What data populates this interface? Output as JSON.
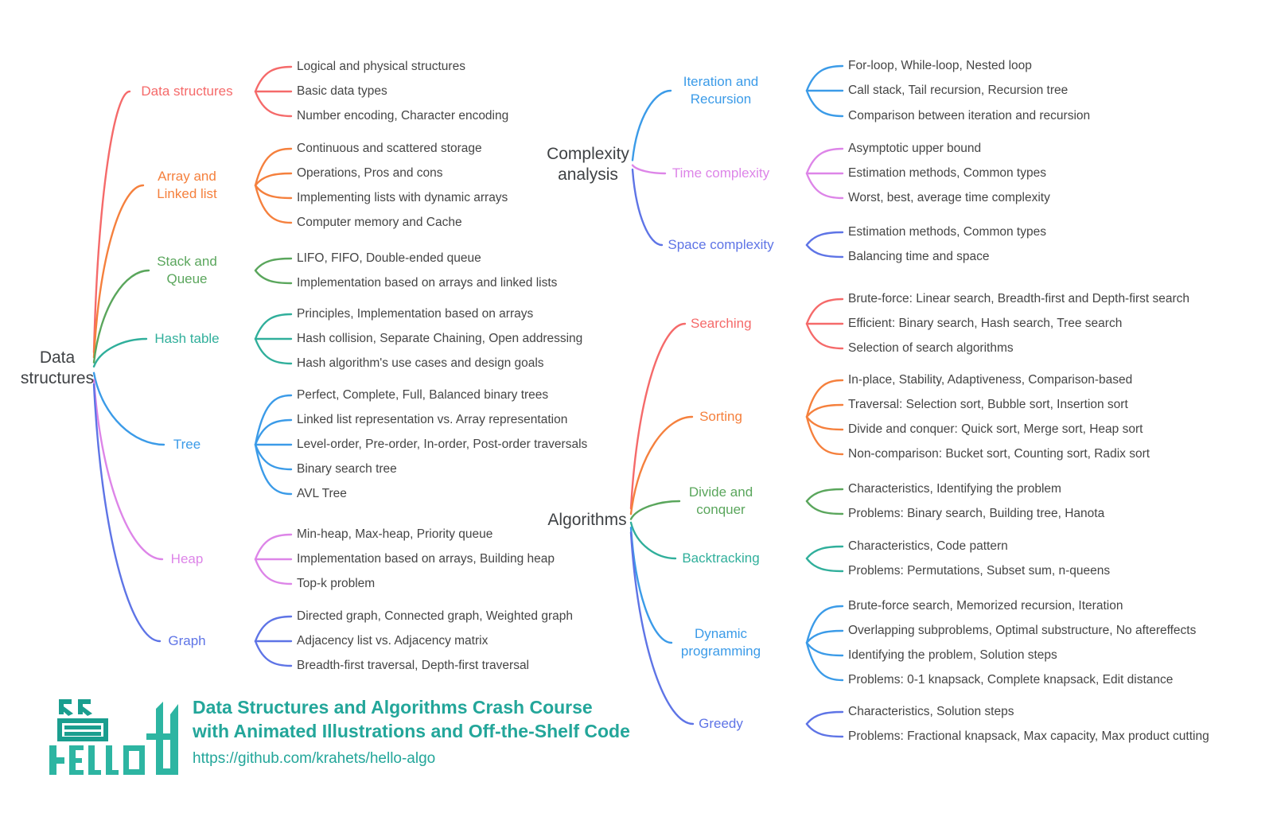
{
  "colors": {
    "background": "#ffffff",
    "leaf_text": "#454545",
    "root_text": "#3f4245",
    "red": "#f56a6a",
    "orange": "#f5803d",
    "green": "#5aa65c",
    "teal": "#30af9b",
    "blue": "#3b9be8",
    "orchid": "#dd85e8",
    "indigo": "#5e74e6"
  },
  "trees": {
    "data_structures": {
      "root": "Data\nstructures",
      "branches": [
        {
          "label": "Data structures",
          "color": "#f56a6a",
          "leaves": [
            "Logical and physical structures",
            "Basic data types",
            "Number encoding, Character encoding"
          ]
        },
        {
          "label": "Array and\nLinked list",
          "color": "#f5803d",
          "leaves": [
            "Continuous and scattered storage",
            "Operations, Pros and cons",
            "Implementing lists with dynamic arrays",
            "Computer memory and Cache"
          ]
        },
        {
          "label": "Stack and\nQueue",
          "color": "#5aa65c",
          "leaves": [
            "LIFO, FIFO, Double-ended queue",
            "Implementation based on arrays and linked lists"
          ]
        },
        {
          "label": "Hash table",
          "color": "#30af9b",
          "leaves": [
            "Principles, Implementation based on arrays",
            "Hash collision, Separate Chaining, Open addressing",
            "Hash algorithm's use cases and design goals"
          ]
        },
        {
          "label": "Tree",
          "color": "#3b9be8",
          "leaves": [
            "Perfect, Complete, Full, Balanced binary trees",
            "Linked list representation vs. Array representation",
            "Level-order, Pre-order, In-order, Post-order traversals",
            "Binary search tree",
            "AVL Tree"
          ]
        },
        {
          "label": "Heap",
          "color": "#dd85e8",
          "leaves": [
            "Min-heap, Max-heap, Priority queue",
            "Implementation based on arrays, Building heap",
            "Top-k problem"
          ]
        },
        {
          "label": "Graph",
          "color": "#5e74e6",
          "leaves": [
            "Directed graph, Connected graph, Weighted graph",
            "Adjacency list vs. Adjacency matrix",
            "Breadth-first traversal, Depth-first traversal"
          ]
        }
      ]
    },
    "complexity": {
      "root": "Complexity\nanalysis",
      "branches": [
        {
          "label": "Iteration and\nRecursion",
          "color": "#3b9be8",
          "leaves": [
            "For-loop, While-loop, Nested loop",
            "Call stack, Tail recursion, Recursion tree",
            "Comparison between iteration and recursion"
          ]
        },
        {
          "label": "Time complexity",
          "color": "#dd85e8",
          "leaves": [
            "Asymptotic upper bound",
            "Estimation methods, Common types",
            "Worst, best, average time complexity"
          ]
        },
        {
          "label": "Space complexity",
          "color": "#5e74e6",
          "leaves": [
            "Estimation methods, Common types",
            "Balancing time and space"
          ]
        }
      ]
    },
    "algorithms": {
      "root": "Algorithms",
      "branches": [
        {
          "label": "Searching",
          "color": "#f56a6a",
          "leaves": [
            "Brute-force: Linear search, Breadth-first and Depth-first search",
            "Efficient: Binary search, Hash search, Tree search",
            "Selection of search algorithms"
          ]
        },
        {
          "label": "Sorting",
          "color": "#f5803d",
          "leaves": [
            "In-place, Stability, Adaptiveness, Comparison-based",
            "Traversal: Selection sort, Bubble sort, Insertion sort",
            "Divide and conquer: Quick sort, Merge sort, Heap sort",
            "Non-comparison: Bucket sort, Counting sort, Radix sort"
          ]
        },
        {
          "label": "Divide and\nconquer",
          "color": "#5aa65c",
          "leaves": [
            "Characteristics, Identifying the problem",
            "Problems: Binary search, Building tree, Hanota"
          ]
        },
        {
          "label": "Backtracking",
          "color": "#30af9b",
          "leaves": [
            "Characteristics, Code pattern",
            "Problems: Permutations, Subset sum, n-queens"
          ]
        },
        {
          "label": "Dynamic\nprogramming",
          "color": "#3b9be8",
          "leaves": [
            "Brute-force search, Memorized recursion, Iteration",
            "Overlapping subproblems, Optimal substructure, No aftereffects",
            "Identifying the problem, Solution steps",
            "Problems: 0-1 knapsack, Complete knapsack, Edit distance"
          ]
        },
        {
          "label": "Greedy",
          "color": "#5e74e6",
          "leaves": [
            "Characteristics, Solution steps",
            "Problems: Fractional knapsack, Max capacity, Max product cutting"
          ]
        }
      ]
    }
  },
  "footer": {
    "title_line1": "Data Structures and Algorithms Crash Course",
    "title_line2": "with Animated Illustrations and Off-the-Shelf Code",
    "url": "https://github.com/krahets/hello-algo",
    "brand_color": "#23a69a",
    "logo_teal_light": "#2db5a2",
    "logo_teal_dark": "#1a9e8f",
    "logo_name": "hello-algo-logo"
  }
}
